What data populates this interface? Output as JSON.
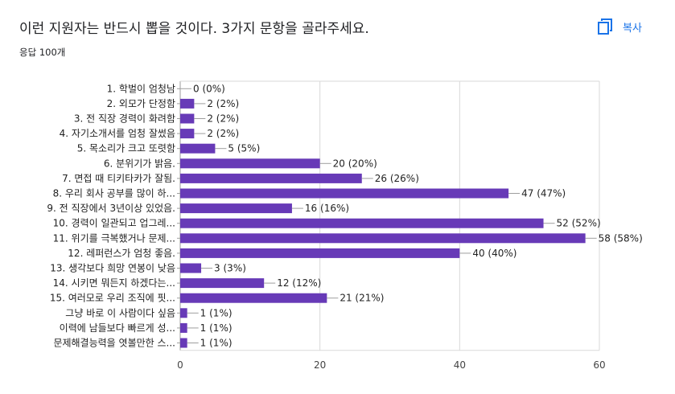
{
  "header": {
    "title": "이런 지원자는 반드시 뽑을 것이다. 3가지 문항을 골라주세요.",
    "responses": "응답 100개",
    "copy_label": "복사",
    "copy_icon": "copy-icon"
  },
  "colors": {
    "bar": "#673ab7",
    "grid": "#d9d9d9",
    "accent": "#1a73e8"
  },
  "chart_data": {
    "type": "bar",
    "orientation": "horizontal",
    "categories": [
      "1. 학벌이 엄청남",
      "2. 외모가 단정함",
      "3. 전 직장 경력이 화려함",
      "4. 자기소개서를 엄청 잘썼음",
      "5. 목소리가 크고 또렷함",
      "6. 분위기가 밝음.",
      "7. 면접 때 티키타카가 잘됨.",
      "8. 우리 회사 공부를 많이 하...",
      "9. 전 직장에서 3년이상 있었음.",
      "10. 경력이 일관되고 업그레...",
      "11. 위기를 극복했거나 문제...",
      "12. 레퍼런스가 엄청 좋음.",
      "13. 생각보다 희망 연봉이 낮음",
      "14. 시키면 뭐든지 하겠다는...",
      "15. 여러모로 우리 조직에 핏...",
      "그냥 바로 이 사람이다 싶음",
      "이력에 남들보다 빠르게 성...",
      "문제해결능력을 엿볼만한 스..."
    ],
    "values": [
      0,
      2,
      2,
      2,
      5,
      20,
      26,
      47,
      16,
      52,
      58,
      40,
      3,
      12,
      21,
      1,
      1,
      1
    ],
    "value_labels": [
      "0 (0%)",
      "2 (2%)",
      "2 (2%)",
      "2 (2%)",
      "5 (5%)",
      "20 (20%)",
      "26 (26%)",
      "47 (47%)",
      "16 (16%)",
      "52 (52%)",
      "58 (58%)",
      "40 (40%)",
      "3 (3%)",
      "12 (12%)",
      "21 (21%)",
      "1 (1%)",
      "1 (1%)",
      "1 (1%)"
    ],
    "xlim": [
      0,
      60
    ],
    "xticks": [
      0,
      20,
      40,
      60
    ],
    "grid": true,
    "legend": "none"
  }
}
